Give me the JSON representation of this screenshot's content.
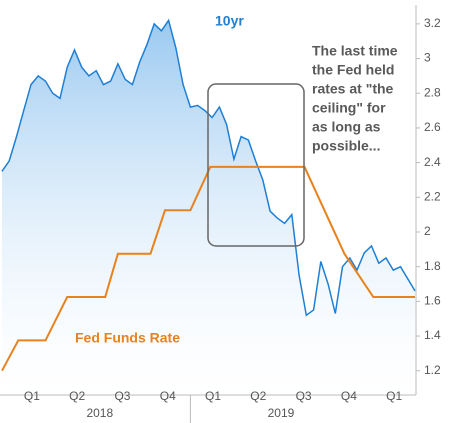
{
  "chart_data": {
    "type": "line",
    "xlim": [
      2017.96,
      2020.24
    ],
    "ylim": [
      1.06,
      3.28
    ],
    "yticks": [
      1.2,
      1.4,
      1.6,
      1.8,
      2,
      2.2,
      2.4,
      2.6,
      2.8,
      3,
      3.2
    ],
    "xticks": [
      {
        "value": 2018.125,
        "label": "Q1"
      },
      {
        "value": 2018.375,
        "label": "Q2"
      },
      {
        "value": 2018.625,
        "label": "Q3"
      },
      {
        "value": 2018.875,
        "label": "Q4"
      },
      {
        "value": 2019.125,
        "label": "Q1"
      },
      {
        "value": 2019.375,
        "label": "Q2"
      },
      {
        "value": 2019.625,
        "label": "Q3"
      },
      {
        "value": 2019.875,
        "label": "Q4"
      },
      {
        "value": 2020.125,
        "label": "Q1"
      }
    ],
    "year_labels": [
      {
        "value": 2018.5,
        "label": "2018"
      },
      {
        "value": 2019.5,
        "label": "2019"
      }
    ],
    "series": [
      {
        "name": "10yr",
        "color": "#1f7fd4",
        "area": true,
        "x": [
          2017.96,
          2018.0,
          2018.04,
          2018.08,
          2018.12,
          2018.16,
          2018.2,
          2018.24,
          2018.28,
          2018.32,
          2018.36,
          2018.4,
          2018.44,
          2018.48,
          2018.52,
          2018.56,
          2018.6,
          2018.64,
          2018.68,
          2018.72,
          2018.76,
          2018.8,
          2018.84,
          2018.88,
          2018.92,
          2018.96,
          2019.0,
          2019.04,
          2019.08,
          2019.12,
          2019.16,
          2019.2,
          2019.24,
          2019.28,
          2019.32,
          2019.36,
          2019.4,
          2019.44,
          2019.48,
          2019.52,
          2019.56,
          2019.6,
          2019.64,
          2019.68,
          2019.72,
          2019.76,
          2019.8,
          2019.84,
          2019.88,
          2019.92,
          2019.96,
          2020.0,
          2020.04,
          2020.08,
          2020.12,
          2020.16,
          2020.24
        ],
        "values": [
          2.35,
          2.41,
          2.55,
          2.7,
          2.85,
          2.9,
          2.87,
          2.8,
          2.77,
          2.95,
          3.05,
          2.95,
          2.9,
          2.93,
          2.85,
          2.87,
          2.97,
          2.88,
          2.85,
          2.98,
          3.08,
          3.2,
          3.16,
          3.22,
          3.06,
          2.85,
          2.72,
          2.73,
          2.7,
          2.66,
          2.72,
          2.62,
          2.42,
          2.55,
          2.53,
          2.41,
          2.3,
          2.12,
          2.08,
          2.05,
          2.1,
          1.75,
          1.52,
          1.55,
          1.83,
          1.7,
          1.53,
          1.8,
          1.85,
          1.78,
          1.88,
          1.92,
          1.82,
          1.85,
          1.78,
          1.8,
          1.66
        ]
      },
      {
        "name": "Fed Funds Rate",
        "color": "#e8821e",
        "x": [
          2017.96,
          2018.05,
          2018.2,
          2018.32,
          2018.53,
          2018.6,
          2018.78,
          2018.86,
          2019.0,
          2019.11,
          2019.63,
          2019.85,
          2020.01,
          2020.24
        ],
        "values": [
          1.2,
          1.375,
          1.375,
          1.625,
          1.625,
          1.875,
          1.875,
          2.125,
          2.125,
          2.375,
          2.375,
          1.875,
          1.625,
          1.625
        ]
      }
    ],
    "annotations": [
      "The last time",
      "the Fed held",
      "rates at \"the",
      "ceiling\" for",
      "as long as",
      "possible..."
    ]
  }
}
